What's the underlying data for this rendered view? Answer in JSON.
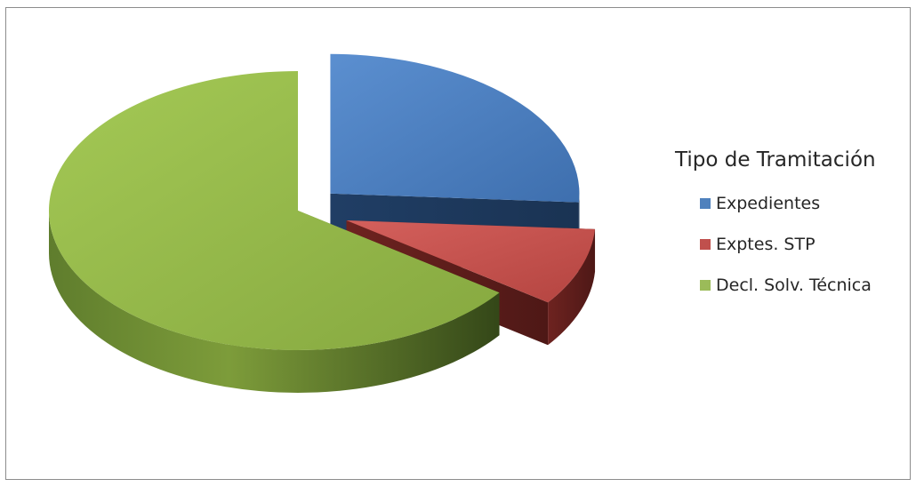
{
  "chart_data": {
    "type": "pie",
    "style": "3d-exploded",
    "title": "",
    "legend_title": "Tipo de Tramitación",
    "legend_position": "right",
    "categories": [
      "Expedientes",
      "Exptes. STP",
      "Decl. Solv. Técnica"
    ],
    "values": [
      26,
      9,
      65
    ],
    "unit": "percent",
    "colors": [
      "#4f81bd",
      "#c0504d",
      "#9bbb59"
    ]
  }
}
